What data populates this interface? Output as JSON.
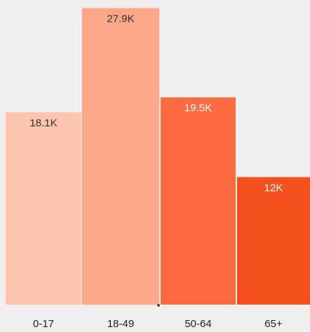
{
  "chart_data": {
    "type": "bar",
    "categories": [
      "0-17",
      "18-49",
      "50-64",
      "65+"
    ],
    "values": [
      18100,
      27900,
      19500,
      12000
    ],
    "value_labels": [
      "18.1K",
      "27.9K",
      "19.5K",
      "12K"
    ],
    "ylim": [
      0,
      28000
    ],
    "grid": false,
    "legend": "none",
    "colors": [
      "#fdc5ad",
      "#fda688",
      "#fc6c40",
      "#f4511e"
    ],
    "label_colors": [
      "#333333",
      "#333333",
      "#ffffff",
      "#ffffff"
    ]
  }
}
